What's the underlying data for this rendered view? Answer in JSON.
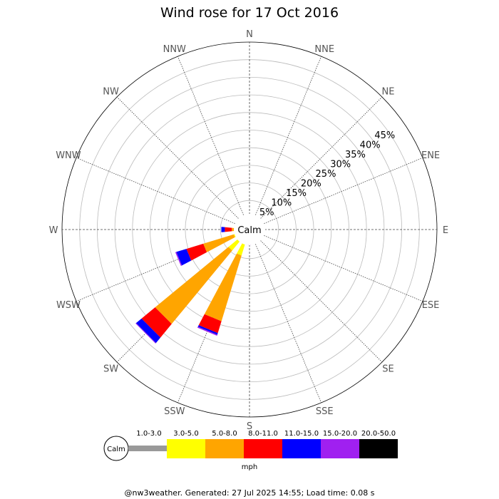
{
  "chart_data": {
    "type": "wind-rose",
    "title": "Wind rose for 17 Oct 2016",
    "center_label": "Calm",
    "unit": "mph",
    "radial_max": 50,
    "radial_ticks": [
      5,
      10,
      15,
      20,
      25,
      30,
      35,
      40,
      45
    ],
    "radial_tick_suffix": "%",
    "directions": [
      "N",
      "NNE",
      "NE",
      "ENE",
      "E",
      "ESE",
      "SE",
      "SSE",
      "S",
      "SSW",
      "SW",
      "WSW",
      "W",
      "WNW",
      "NW",
      "NNW"
    ],
    "speed_bins": [
      {
        "label": "1.0-3.0",
        "color": "#999999"
      },
      {
        "label": "3.0-5.0",
        "color": "#ffff00"
      },
      {
        "label": "5.0-8.0",
        "color": "#ffa500"
      },
      {
        "label": "8.0-11.0",
        "color": "#ff0000"
      },
      {
        "label": "11.0-15.0",
        "color": "#0000ff"
      },
      {
        "label": "15.0-20.0",
        "color": "#a020f0"
      },
      {
        "label": "20.0-50.0",
        "color": "#000000"
      }
    ],
    "series": [
      {
        "direction": "S",
        "values": [
          0.4,
          0.2,
          0.0,
          0.3,
          0.2,
          0.1,
          0.0
        ]
      },
      {
        "direction": "SSW",
        "values": [
          0.5,
          4.0,
          19.5,
          3.5,
          0.5,
          0.3,
          0.0
        ]
      },
      {
        "direction": "SW",
        "values": [
          0.5,
          4.0,
          27.0,
          5.0,
          2.0,
          0.2,
          0.0
        ]
      },
      {
        "direction": "WSW",
        "values": [
          0.5,
          1.0,
          9.0,
          5.0,
          3.0,
          0.3,
          0.0
        ]
      },
      {
        "direction": "W",
        "values": [
          0.3,
          0.0,
          1.5,
          2.0,
          1.0,
          0.0,
          0.0
        ]
      }
    ]
  },
  "legend": {
    "calm_label": "Calm",
    "unit_label": "mph"
  },
  "footer": "@nw3weather. Generated: 27 Jul 2025 14:55; Load time: 0.08 s"
}
